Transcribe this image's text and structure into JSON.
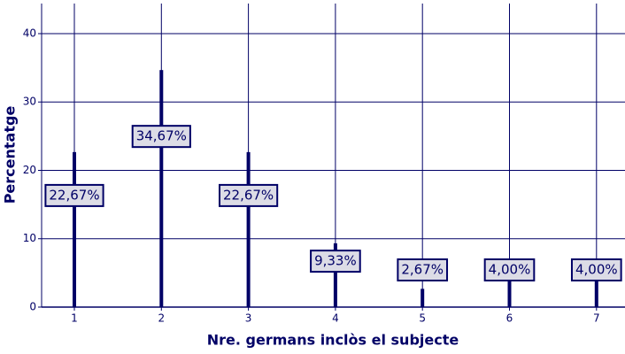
{
  "chart_data": {
    "type": "needle",
    "x_label": "Nre. germans inclòs el subjecte",
    "y_label": "Percentatge",
    "categories": [
      "1",
      "2",
      "3",
      "4",
      "5",
      "6",
      "7"
    ],
    "values": [
      22.67,
      34.67,
      22.67,
      9.33,
      2.67,
      4.0,
      4.0
    ],
    "value_labels": [
      "22,67%",
      "34,67%",
      "22,67%",
      "9,33%",
      "2,67%",
      "4,00%",
      "4,00%"
    ],
    "color": "#000066",
    "ylim": [
      0,
      44.4
    ],
    "yticks": [
      0,
      10,
      20,
      30,
      40
    ],
    "grid": true
  }
}
